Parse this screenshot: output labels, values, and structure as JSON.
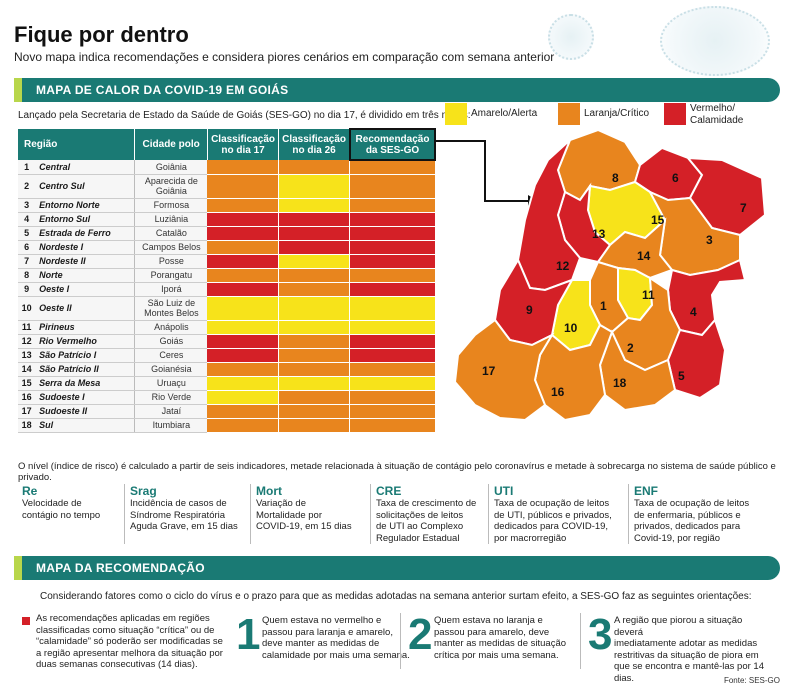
{
  "header": {
    "title": "Fique por dentro",
    "subtitle": "Novo mapa indica recomendações e considera piores cenários em comparação com semana anterior"
  },
  "section1": {
    "bar_label": "MAPA DE CALOR DA COVID-19 EM GOIÁS",
    "intro": "Lançado pela Secretaria de Estado da Saúde de Goiás (SES-GO) no dia 17, é dividido em três níveis:",
    "legend": [
      {
        "label_line1": "Amarelo/Alerta",
        "label_line2": "",
        "color": "#f7e31a"
      },
      {
        "label_line1": "Laranja/Crítico",
        "label_line2": "",
        "color": "#e8851e"
      },
      {
        "label_line1": "Vermelho/",
        "label_line2": "Calamidade",
        "color": "#d42027"
      }
    ]
  },
  "colors": {
    "Y": "#f7e31a",
    "O": "#e8851e",
    "R": "#d42027",
    "teal": "#1a7a74",
    "lime": "#b8d64b"
  },
  "table": {
    "headers": {
      "region": "Região",
      "city": "Cidade polo",
      "class17_l1": "Classificação",
      "class17_l2": "no dia 17",
      "class26_l1": "Classificação",
      "class26_l2": "no dia 26",
      "rec_l1": "Recomendação",
      "rec_l2": "da SES-GO"
    },
    "rows": [
      {
        "num": "1",
        "region": "Central",
        "city": "Goiânia",
        "city2": "",
        "c17": "O",
        "c26": "O",
        "rec": "O"
      },
      {
        "num": "2",
        "region": "Centro Sul",
        "city": "Aparecida de",
        "city2": "Goiânia",
        "c17": "O",
        "c26": "Y",
        "rec": "O"
      },
      {
        "num": "3",
        "region": "Entorno Norte",
        "city": "Formosa",
        "city2": "",
        "c17": "O",
        "c26": "Y",
        "rec": "O"
      },
      {
        "num": "4",
        "region": "Entorno Sul",
        "city": "Luziânia",
        "city2": "",
        "c17": "R",
        "c26": "R",
        "rec": "R"
      },
      {
        "num": "5",
        "region": "Estrada de Ferro",
        "city": "Catalão",
        "city2": "",
        "c17": "R",
        "c26": "R",
        "rec": "R"
      },
      {
        "num": "6",
        "region": "Nordeste I",
        "city": "Campos Belos",
        "city2": "",
        "c17": "O",
        "c26": "R",
        "rec": "R"
      },
      {
        "num": "7",
        "region": "Nordeste II",
        "city": "Posse",
        "city2": "",
        "c17": "R",
        "c26": "Y",
        "rec": "R"
      },
      {
        "num": "8",
        "region": "Norte",
        "city": "Porangatu",
        "city2": "",
        "c17": "O",
        "c26": "O",
        "rec": "O"
      },
      {
        "num": "9",
        "region": "Oeste I",
        "city": "Iporá",
        "city2": "",
        "c17": "R",
        "c26": "O",
        "rec": "R"
      },
      {
        "num": "10",
        "region": "Oeste II",
        "city": "São Luiz de",
        "city2": "Montes Belos",
        "c17": "Y",
        "c26": "Y",
        "rec": "Y"
      },
      {
        "num": "11",
        "region": "Pirineus",
        "city": "Anápolis",
        "city2": "",
        "c17": "Y",
        "c26": "Y",
        "rec": "Y"
      },
      {
        "num": "12",
        "region": "Rio Vermelho",
        "city": "Goiás",
        "city2": "",
        "c17": "R",
        "c26": "O",
        "rec": "R"
      },
      {
        "num": "13",
        "region": "São Patrício I",
        "city": "Ceres",
        "city2": "",
        "c17": "R",
        "c26": "O",
        "rec": "R"
      },
      {
        "num": "14",
        "region": "São Patrício II",
        "city": "Goianésia",
        "city2": "",
        "c17": "O",
        "c26": "O",
        "rec": "O"
      },
      {
        "num": "15",
        "region": "Serra da Mesa",
        "city": "Uruaçu",
        "city2": "",
        "c17": "Y",
        "c26": "Y",
        "rec": "Y"
      },
      {
        "num": "16",
        "region": "Sudoeste I",
        "city": "Rio Verde",
        "city2": "",
        "c17": "Y",
        "c26": "O",
        "rec": "O"
      },
      {
        "num": "17",
        "region": "Sudoeste II",
        "city": "Jataí",
        "city2": "",
        "c17": "O",
        "c26": "O",
        "rec": "O"
      },
      {
        "num": "18",
        "region": "Sul",
        "city": "Itumbiara",
        "city2": "",
        "c17": "O",
        "c26": "O",
        "rec": "O"
      }
    ]
  },
  "map_labels": [
    "1",
    "2",
    "3",
    "4",
    "5",
    "6",
    "7",
    "8",
    "9",
    "10",
    "11",
    "12",
    "13",
    "14",
    "15",
    "16",
    "17",
    "18"
  ],
  "note": "O nível (índice de risco) é calculado a partir de seis indicadores, metade relacionada à situação de contágio pelo coronavírus e metade à sobrecarga no sistema de saúde público e privado.",
  "indicators": [
    {
      "abbr": "Re",
      "desc": [
        "Velocidade de",
        "contágio no tempo"
      ]
    },
    {
      "abbr": "Srag",
      "desc": [
        "Incidência de casos de",
        "Síndrome Respiratória",
        "Aguda Grave, em 15 dias"
      ]
    },
    {
      "abbr": "Mort",
      "desc": [
        "Variação de",
        "Mortalidade por",
        "COVID-19, em 15 dias"
      ]
    },
    {
      "abbr": "CRE",
      "desc": [
        "Taxa de crescimento de",
        "solicitações de leitos",
        "de UTI ao Complexo",
        "Regulador Estadual"
      ]
    },
    {
      "abbr": "UTI",
      "desc": [
        "Taxa de ocupação de leitos",
        "de UTI, públicos e privados,",
        "dedicados para COVID-19,",
        "por macrorregião"
      ]
    },
    {
      "abbr": "ENF",
      "desc": [
        "Taxa de ocupação de leitos",
        "de enfermaria, públicos e",
        "privados, dedicados para",
        "Covid-19, por região"
      ]
    }
  ],
  "section2": {
    "bar_label": "MAPA DA RECOMENDAÇÃO",
    "consider": "Considerando fatores como o ciclo do vírus e o prazo para que as medidas adotadas na semana anterior surtam efeito, a SES-GO faz as seguintes orientações:",
    "left_note": [
      "As recomendações aplicadas em regiões",
      "classificadas como situação “crítica” ou de",
      "“calamidade” só poderão ser modificadas se",
      "a região apresentar melhora da situação por",
      "duas semanas consecutivas (14 dias)."
    ],
    "rules": [
      {
        "num": "1",
        "lines": [
          "Quem estava no vermelho e",
          "passou para laranja e amarelo,",
          "deve manter as medidas de",
          "calamidade por mais uma semana."
        ]
      },
      {
        "num": "2",
        "lines": [
          "Quem estava no laranja e",
          "passou para amarelo, deve",
          "manter as medidas de situação",
          "crítica por mais uma semana."
        ]
      },
      {
        "num": "3",
        "lines": [
          "A região que piorou a situação deverá",
          "imediatamente adotar as medidas",
          "restritivas da situação de piora em",
          "que se encontra e mantê-las por 14 dias."
        ]
      }
    ]
  },
  "source": "Fonte: SES-GO"
}
